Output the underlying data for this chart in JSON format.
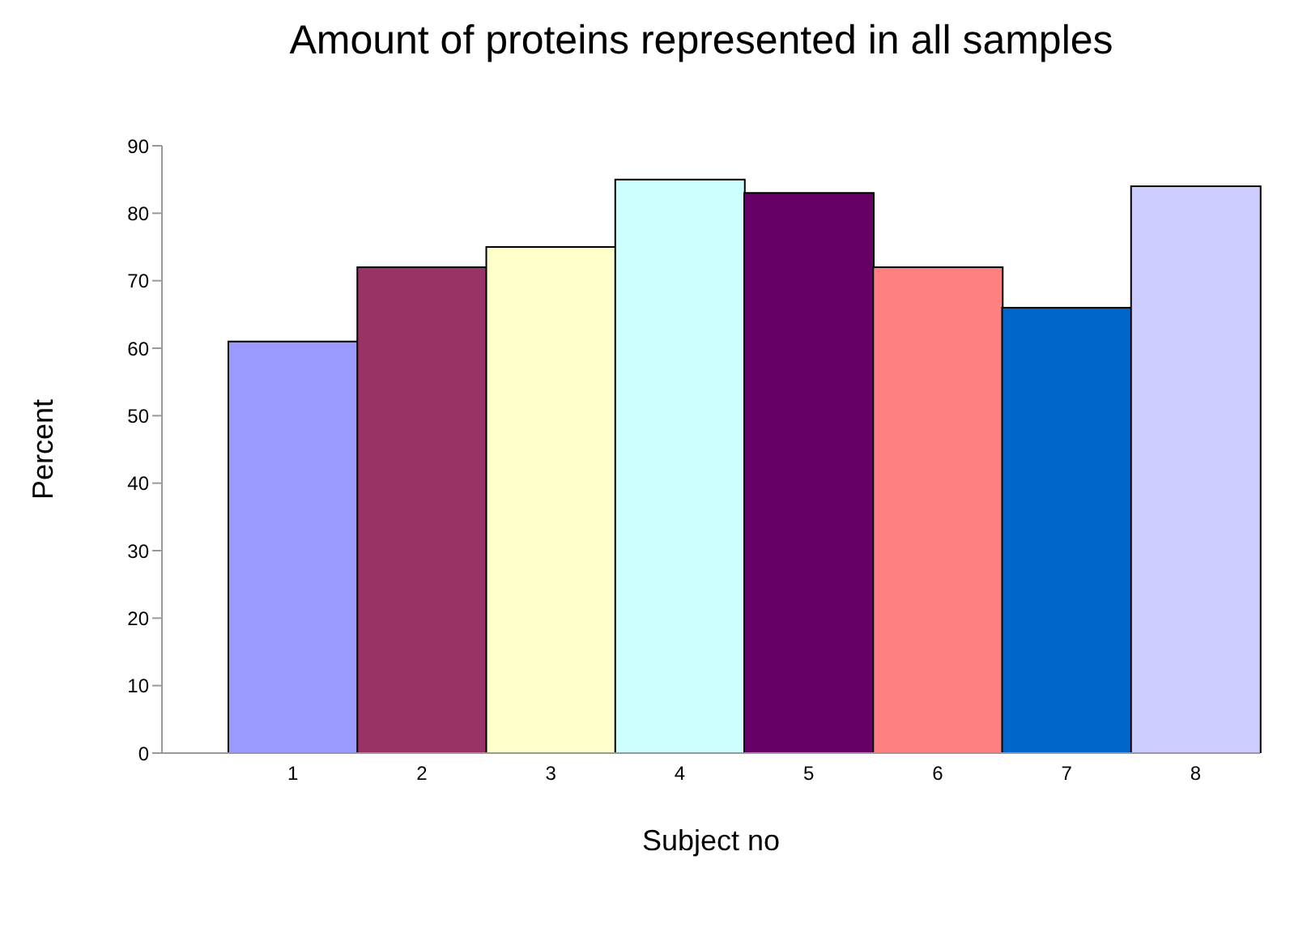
{
  "chart_data": {
    "type": "bar",
    "title": "Amount of proteins represented in all samples",
    "xlabel": "Subject no",
    "ylabel": "Percent",
    "categories": [
      "1",
      "2",
      "3",
      "4",
      "5",
      "6",
      "7",
      "8"
    ],
    "values": [
      61,
      72,
      75,
      85,
      83,
      72,
      66,
      84
    ],
    "colors": [
      "#9999ff",
      "#993366",
      "#ffffcc",
      "#ccffff",
      "#660066",
      "#ff8080",
      "#0066cc",
      "#ccccff"
    ],
    "ylim": [
      0,
      90
    ],
    "yticks": [
      0,
      10,
      20,
      30,
      40,
      50,
      60,
      70,
      80,
      90
    ],
    "grid": false,
    "legend": false
  }
}
